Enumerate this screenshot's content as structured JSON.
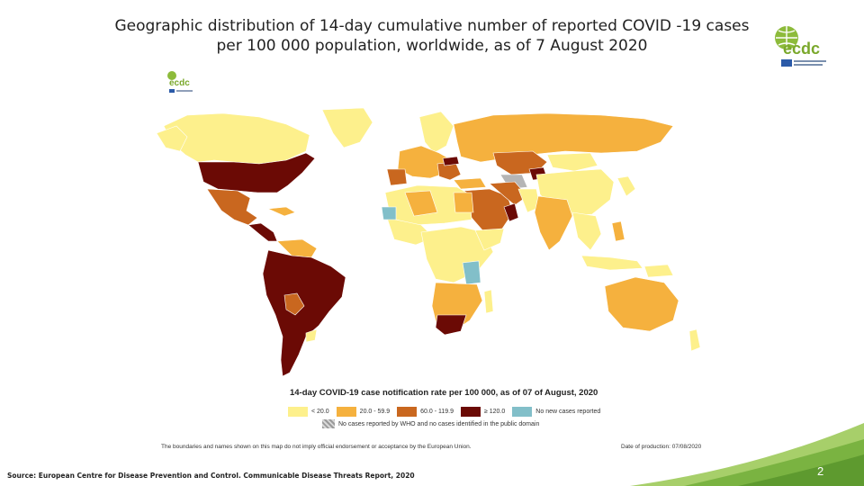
{
  "slide": {
    "title": "Geographic distribution of 14-day cumulative number of reported COVID -19 cases per 100 000 population, worldwide, as of 7 August 2020",
    "page_number": "2",
    "source": "Source: European Centre for Disease Prevention and Control. Communicable Disease Threats Report, 2020"
  },
  "logo": {
    "text": "ecdc"
  },
  "map": {
    "legend_title": "14-day COVID-19 case notification rate per 100 000, as of 07 of August, 2020",
    "legend": [
      {
        "label": "< 20.0",
        "color": "#fdf08c"
      },
      {
        "label": "20.0 - 59.9",
        "color": "#f5b13e"
      },
      {
        "label": "60.0 - 119.9",
        "color": "#c9671f"
      },
      {
        "label": "≥ 120.0",
        "color": "#6b0a05"
      },
      {
        "label": "No new cases reported",
        "color": "#82bfc9"
      }
    ],
    "no_data_label": "No cases reported by WHO and no cases identified in the public domain",
    "disclaimer": "The boundaries and names shown on this map do not imply official endorsement or acceptance by the European Union.",
    "production_date": "Date of production: 07/08/2020"
  }
}
